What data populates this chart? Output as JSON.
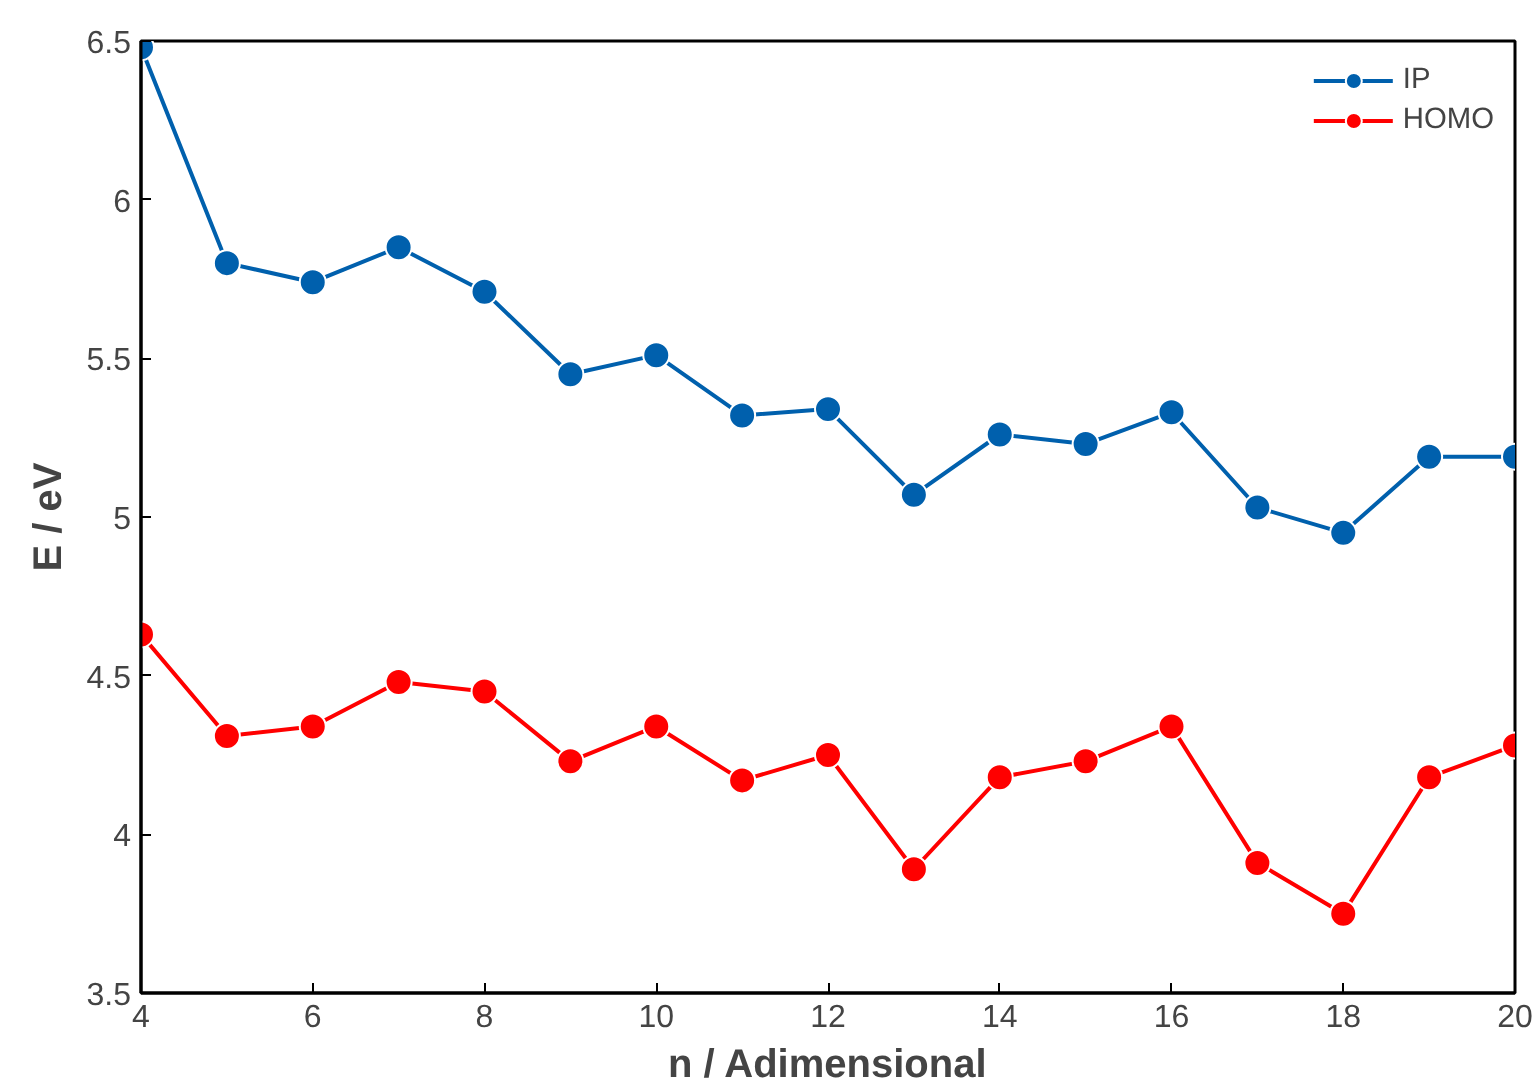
{
  "chart_data": {
    "type": "line",
    "xlabel": "n / Adimensional",
    "ylabel": "E / eV",
    "x": [
      4,
      5,
      6,
      7,
      8,
      9,
      10,
      11,
      12,
      13,
      14,
      15,
      16,
      17,
      18,
      19,
      20
    ],
    "series": [
      {
        "name": "IP",
        "color": "#0060ad",
        "values": [
          6.48,
          5.8,
          5.74,
          5.85,
          5.71,
          5.45,
          5.51,
          5.32,
          5.34,
          5.07,
          5.26,
          5.23,
          5.33,
          5.03,
          4.95,
          5.19,
          5.19
        ]
      },
      {
        "name": "HOMO",
        "color": "#ff0000",
        "values": [
          4.63,
          4.31,
          4.34,
          4.48,
          4.45,
          4.23,
          4.34,
          4.17,
          4.25,
          3.89,
          4.18,
          4.23,
          4.34,
          3.91,
          3.75,
          4.18,
          4.28
        ]
      }
    ],
    "xlim": [
      4,
      20
    ],
    "xticks": [
      4,
      6,
      8,
      10,
      12,
      14,
      16,
      18,
      20
    ],
    "ylim": [
      3.5,
      6.5
    ],
    "yticks": [
      3.5,
      4,
      4.5,
      5,
      5.5,
      6,
      6.5
    ],
    "grid": false,
    "legend": "top right",
    "marker": "circle",
    "line_style": "solid"
  }
}
